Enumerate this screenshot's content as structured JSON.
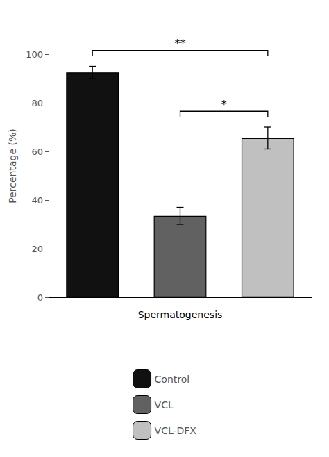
{
  "chart_data": {
    "type": "bar",
    "categories": [
      "Control",
      "VCL",
      "VCL-DFX"
    ],
    "values": [
      92.5,
      33.5,
      65.5
    ],
    "errors": [
      2.5,
      3.5,
      4.5
    ],
    "colors": [
      "#111111",
      "#616161",
      "#c0c0c0"
    ],
    "ylabel": "Percentage (%)",
    "xlabel": "Spermatogenesis",
    "ylim": [
      0,
      108
    ],
    "yticks": [
      0,
      20,
      40,
      60,
      80,
      100
    ],
    "grid": false,
    "legend": "bottom",
    "tick_labels": "y",
    "annotations": [
      {
        "text": "**",
        "from": "Control",
        "to": "VCL-DFX",
        "y": 101.5
      },
      {
        "text": "*",
        "from": "VCL",
        "to": "VCL-DFX",
        "y": 76.5
      }
    ]
  }
}
